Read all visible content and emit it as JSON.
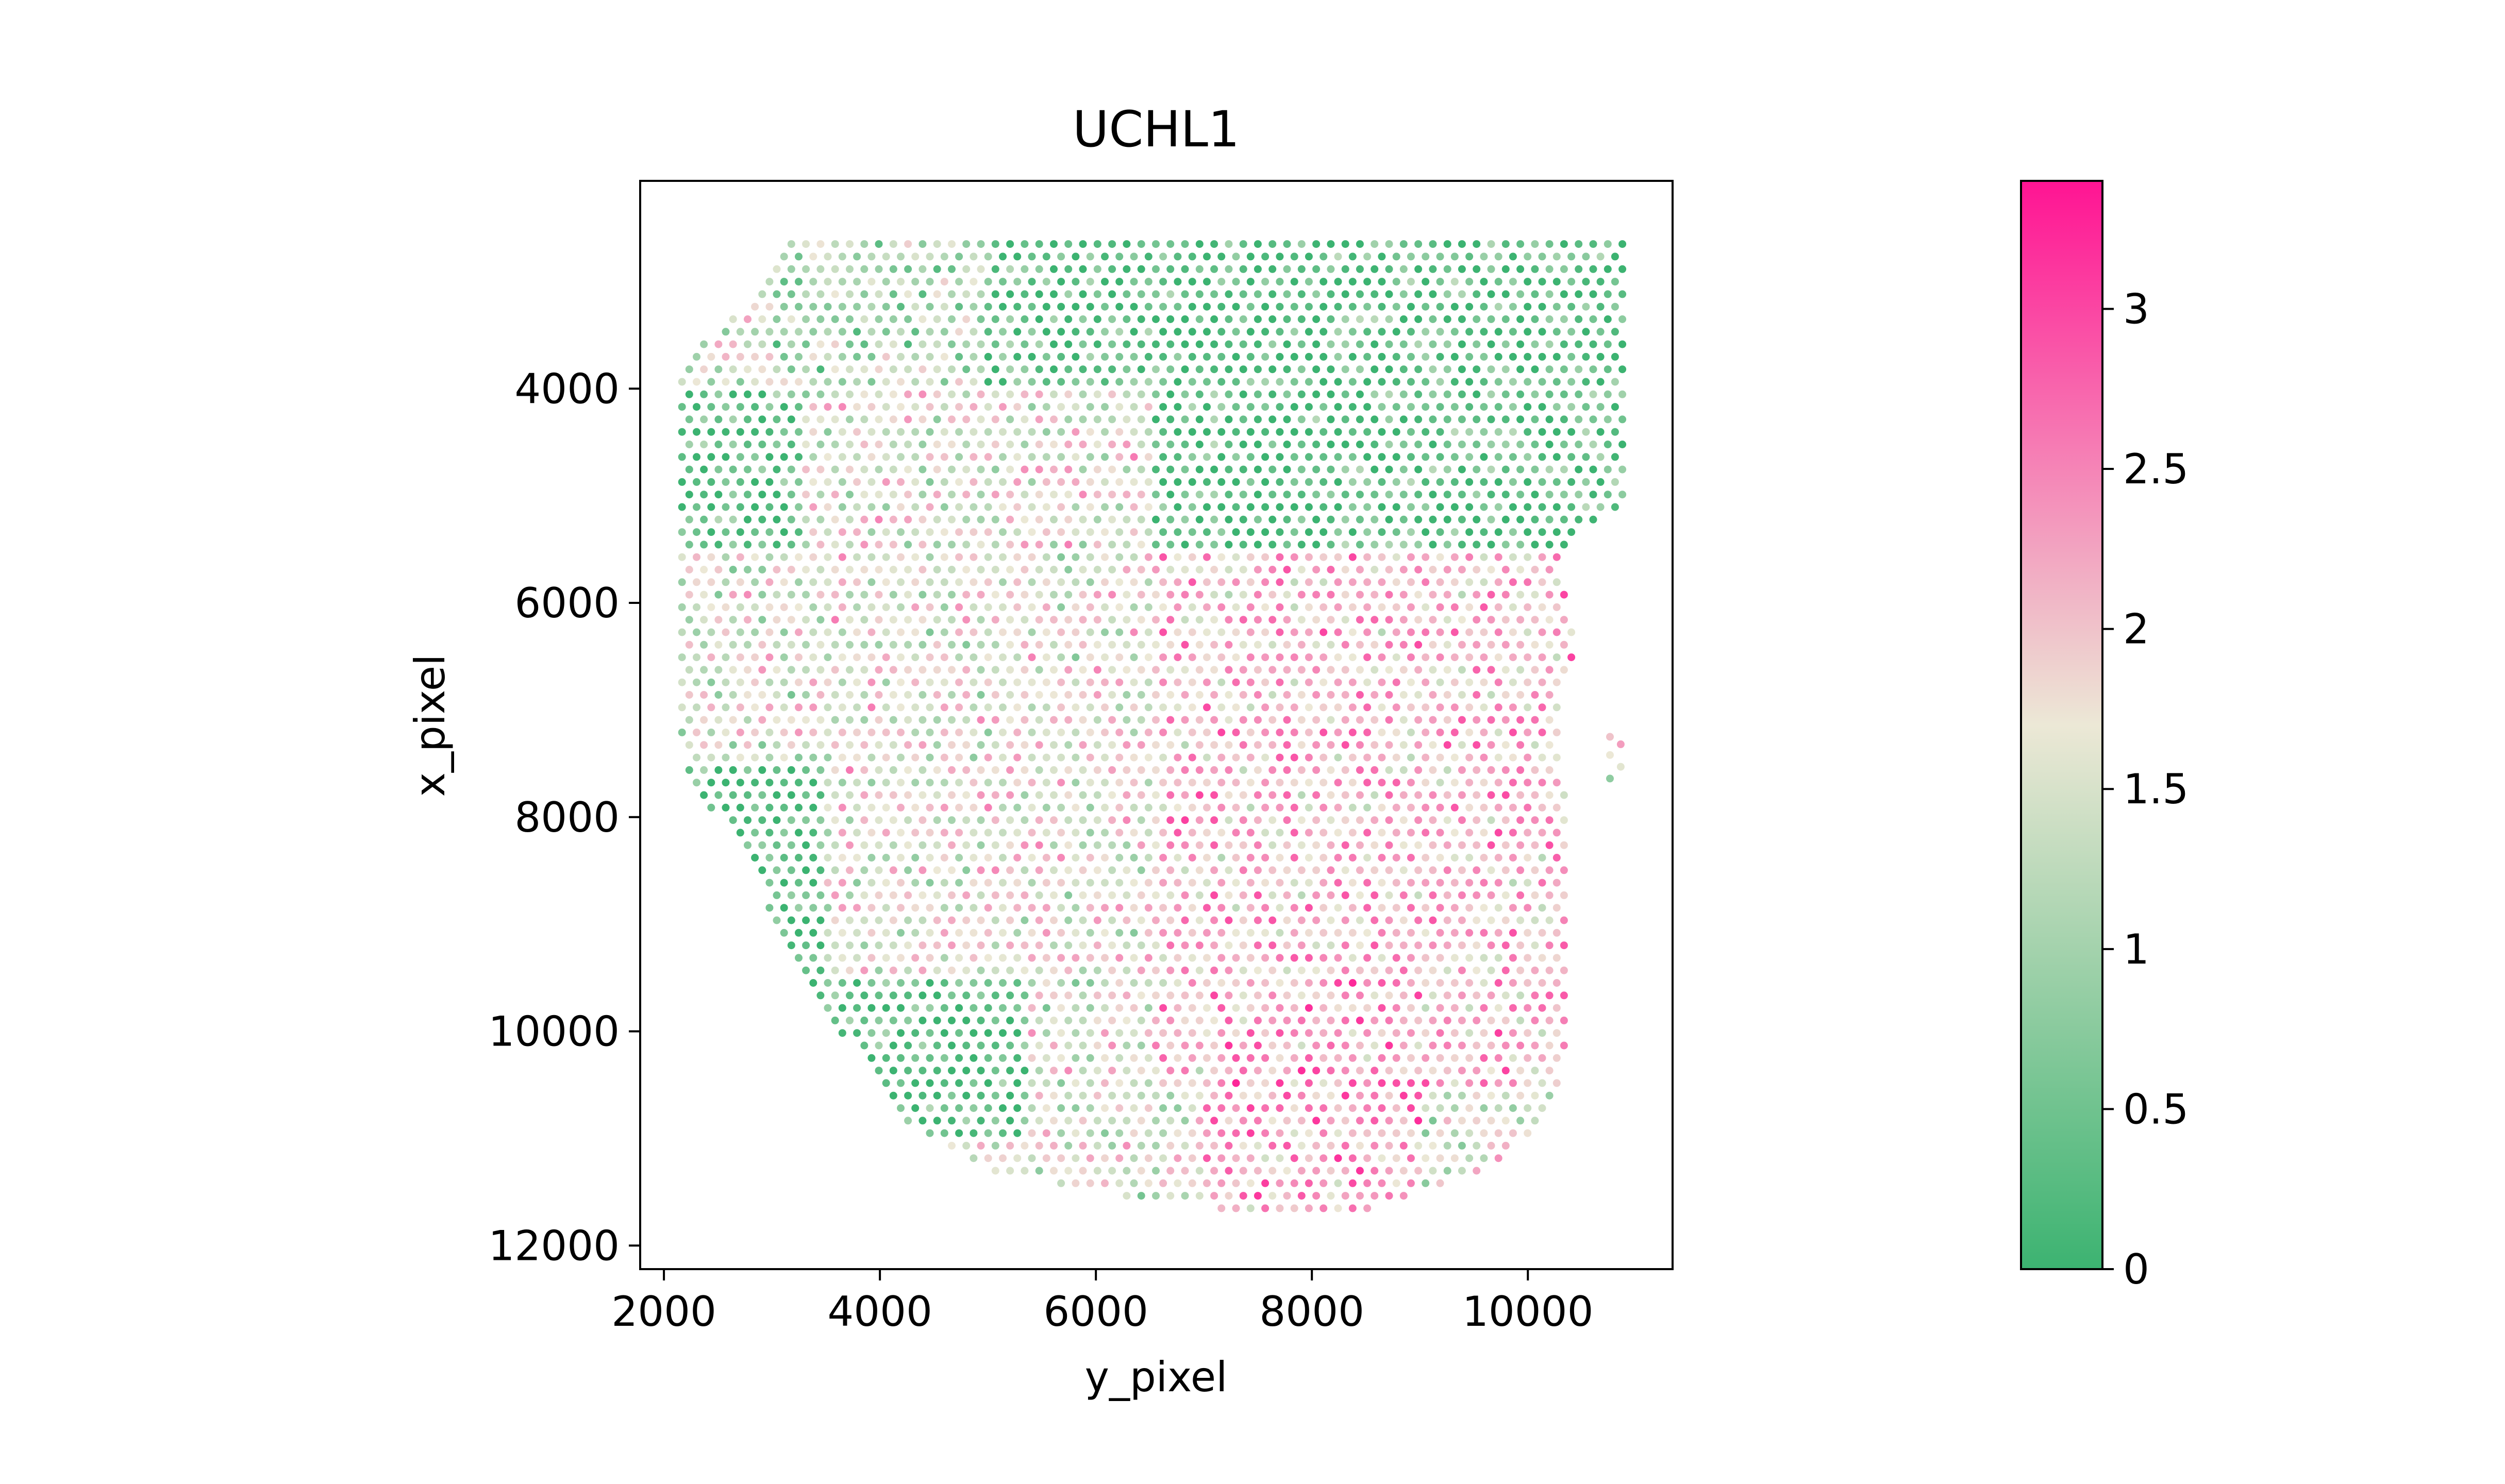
{
  "chart_data": {
    "type": "scatter",
    "title": "UCHL1",
    "xlabel": "y_pixel",
    "ylabel": "x_pixel",
    "x_ticks": [
      "2000",
      "4000",
      "6000",
      "8000",
      "10000"
    ],
    "y_ticks": [
      "4000",
      "6000",
      "8000",
      "10000",
      "12000"
    ],
    "x_tick_values": [
      2000,
      4000,
      6000,
      8000,
      10000
    ],
    "y_tick_values": [
      4000,
      6000,
      8000,
      10000,
      12000
    ],
    "xlim": [
      1780,
      11340
    ],
    "ylim": [
      12220,
      2060
    ],
    "y_axis_inverted": true,
    "grid": false,
    "marker": "small filled circle",
    "spot_spacing": 135,
    "tissue_boundary": {
      "y_range": [
        2650,
        11750
      ],
      "left_edge": [
        [
          2650,
          3150
        ],
        [
          3050,
          2950
        ],
        [
          3600,
          2350
        ],
        [
          3850,
          2150
        ],
        [
          7000,
          2150
        ],
        [
          7600,
          2200
        ],
        [
          8000,
          2500
        ],
        [
          8600,
          2850
        ],
        [
          9500,
          3300
        ],
        [
          10100,
          3700
        ],
        [
          10500,
          4050
        ],
        [
          10800,
          4200
        ],
        [
          11100,
          4600
        ],
        [
          11300,
          5000
        ],
        [
          11500,
          6000
        ],
        [
          11700,
          7500
        ],
        [
          11750,
          8100
        ]
      ],
      "right_edge": [
        [
          2650,
          10900
        ],
        [
          5100,
          10900
        ],
        [
          5300,
          10500
        ],
        [
          5700,
          10300
        ],
        [
          6300,
          10450
        ],
        [
          7000,
          10300
        ],
        [
          8000,
          10350
        ],
        [
          10000,
          10350
        ],
        [
          10500,
          10300
        ],
        [
          10800,
          10200
        ],
        [
          11300,
          9600
        ],
        [
          11600,
          8800
        ],
        [
          11750,
          8100
        ]
      ]
    },
    "isolated_spots": [
      {
        "x": 10760,
        "y": 7250,
        "value": 2.0
      },
      {
        "x": 10860,
        "y": 7320,
        "value": 2.3
      },
      {
        "x": 10760,
        "y": 7420,
        "value": 1.7
      },
      {
        "x": 10860,
        "y": 7530,
        "value": 1.6
      },
      {
        "x": 10760,
        "y": 7640,
        "value": 0.8
      }
    ],
    "expression_regions": [
      {
        "y_range": [
          2650,
          5500
        ],
        "x_range": [
          5000,
          11000
        ],
        "mean_value": 0.3
      },
      {
        "y_range": [
          4000,
          5500
        ],
        "x_range": [
          2100,
          3300
        ],
        "mean_value": 0.3
      },
      {
        "y_range": [
          7500,
          11000
        ],
        "x_range": [
          2000,
          5400
        ],
        "mean_value": 0.25
      },
      {
        "y_range": [
          2650,
          4000
        ],
        "x_range": [
          3000,
          5000
        ],
        "mean_value": 1.1
      },
      {
        "y_range": [
          5500,
          10500
        ],
        "x_range": [
          6500,
          10500
        ],
        "mean_value": 2.1
      },
      {
        "y_range": [
          9500,
          11800
        ],
        "x_range": [
          7000,
          9000
        ],
        "mean_value": 2.3
      },
      {
        "y_range": [
          4000,
          9500
        ],
        "x_range": [
          3500,
          6500
        ],
        "mean_value": 1.6
      }
    ],
    "colorbar": {
      "label": "",
      "range": [
        0,
        3.4
      ],
      "ticks": [
        "0",
        "0.5",
        "1",
        "1.5",
        "2",
        "2.5",
        "3"
      ],
      "tick_values": [
        0,
        0.5,
        1,
        1.5,
        2,
        2.5,
        3
      ],
      "colors": [
        "#3cb371",
        "#ece8d6",
        "#ff1493"
      ],
      "color_stops": [
        0,
        0.5,
        1
      ]
    },
    "edge_color": "#000000"
  }
}
